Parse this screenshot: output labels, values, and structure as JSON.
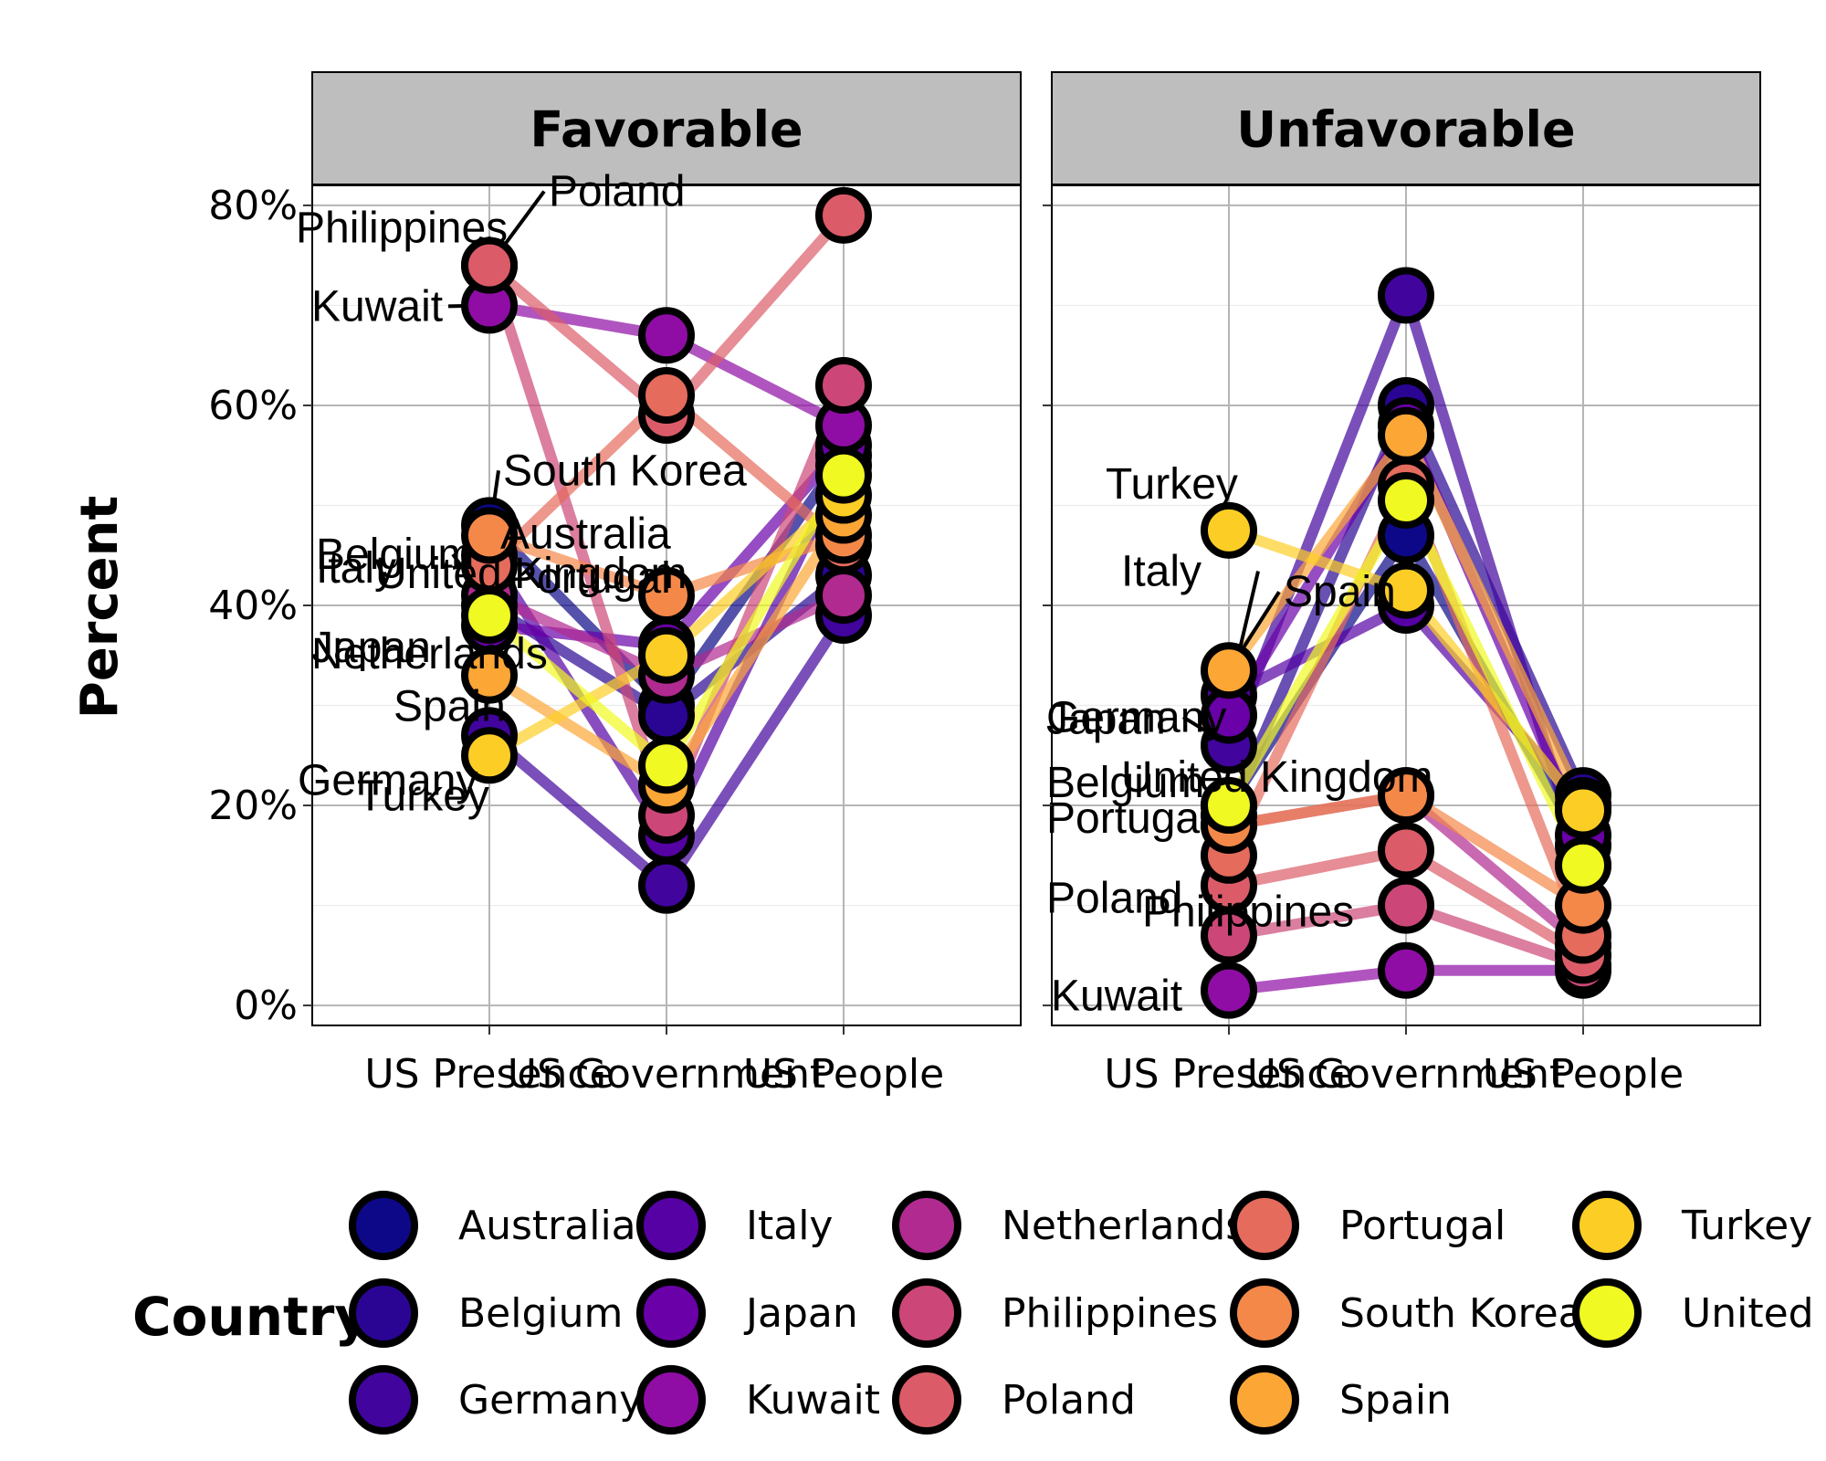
{
  "chart_data": {
    "type": "line",
    "ylabel": "Percent",
    "ylim": [
      -0.02,
      0.82
    ],
    "y_ticks": [
      "0%",
      "20%",
      "40%",
      "60%",
      "80%"
    ],
    "y_tick_values": [
      0,
      0.2,
      0.4,
      0.6,
      0.8
    ],
    "categories": [
      "US Presence",
      "US Government",
      "US People"
    ],
    "grid": true,
    "legend_placement": "bottom",
    "legend_title": "Country",
    "panels": [
      {
        "name": "Favorable",
        "series": [
          {
            "name": "Australia",
            "color": "#0d0887",
            "values": [
              0.48,
              0.3,
              0.55
            ]
          },
          {
            "name": "Belgium",
            "color": "#2a0593",
            "values": [
              0.4,
              0.29,
              0.43
            ]
          },
          {
            "name": "Germany",
            "color": "#41049d",
            "values": [
              0.27,
              0.12,
              0.39
            ]
          },
          {
            "name": "Italy",
            "color": "#5601a4",
            "values": [
              0.45,
              0.17,
              0.54
            ]
          },
          {
            "name": "Japan",
            "color": "#6a00a8",
            "values": [
              0.38,
              0.36,
              0.56
            ]
          },
          {
            "name": "Kuwait",
            "color": "#8f0da4",
            "values": [
              0.7,
              0.67,
              0.58
            ]
          },
          {
            "name": "Netherlands",
            "color": "#b12a90",
            "values": [
              0.41,
              0.33,
              0.41
            ]
          },
          {
            "name": "Philippines",
            "color": "#cc4778",
            "values": [
              0.74,
              0.19,
              0.62
            ]
          },
          {
            "name": "Poland",
            "color": "#db5c68",
            "values": [
              0.74,
              0.59,
              0.79
            ]
          },
          {
            "name": "Portugal",
            "color": "#e56b5d",
            "values": [
              0.44,
              0.61,
              0.46
            ]
          },
          {
            "name": "South Korea",
            "color": "#f48849",
            "values": [
              0.47,
              0.41,
              0.47
            ]
          },
          {
            "name": "Spain",
            "color": "#fca636",
            "values": [
              0.33,
              0.22,
              0.49
            ]
          },
          {
            "name": "Turkey",
            "color": "#fcce25",
            "values": [
              0.25,
              0.35,
              0.51
            ]
          },
          {
            "name": "United Kingdom",
            "color": "#f0f921",
            "values": [
              0.39,
              0.24,
              0.53
            ]
          }
        ],
        "labels": [
          {
            "text": "Philippines",
            "series": "Philippines"
          },
          {
            "text": "Poland",
            "series": "Poland"
          },
          {
            "text": "Kuwait",
            "series": "Kuwait"
          },
          {
            "text": "Australia",
            "series": "Australia"
          },
          {
            "text": "Netherlands",
            "series": "Netherlands"
          },
          {
            "text": "Portugal",
            "series": "Portugal"
          },
          {
            "text": "Belgium",
            "series": "Belgium"
          },
          {
            "text": "South Korea",
            "series": "South Korea"
          },
          {
            "text": "Italy",
            "series": "Italy"
          },
          {
            "text": "United Kingdom",
            "series": "United Kingdom"
          },
          {
            "text": "Japan",
            "series": "Japan"
          },
          {
            "text": "Spain",
            "series": "Spain"
          },
          {
            "text": "Germany",
            "series": "Germany"
          },
          {
            "text": "Turkey",
            "series": "Turkey"
          }
        ]
      },
      {
        "name": "Unfavorable",
        "series": [
          {
            "name": "Australia",
            "color": "#0d0887",
            "values": [
              0.2,
              0.47,
              0.16
            ]
          },
          {
            "name": "Belgium",
            "color": "#2a0593",
            "values": [
              0.19,
              0.6,
              0.21
            ]
          },
          {
            "name": "Germany",
            "color": "#41049d",
            "values": [
              0.26,
              0.71,
              0.14
            ]
          },
          {
            "name": "Italy",
            "color": "#5601a4",
            "values": [
              0.31,
              0.4,
              0.2
            ]
          },
          {
            "name": "Japan",
            "color": "#6a00a8",
            "values": [
              0.29,
              0.58,
              0.17
            ]
          },
          {
            "name": "Kuwait",
            "color": "#8f0da4",
            "values": [
              0.015,
              0.035,
              0.035
            ]
          },
          {
            "name": "Netherlands",
            "color": "#b12a90",
            "values": [
              0.18,
              0.21,
              0.06
            ]
          },
          {
            "name": "Philippines",
            "color": "#cc4778",
            "values": [
              0.07,
              0.1,
              0.04
            ]
          },
          {
            "name": "Poland",
            "color": "#db5c68",
            "values": [
              0.12,
              0.155,
              0.05
            ]
          },
          {
            "name": "Portugal",
            "color": "#e56b5d",
            "values": [
              0.15,
              0.52,
              0.07
            ]
          },
          {
            "name": "South Korea",
            "color": "#f48849",
            "values": [
              0.18,
              0.21,
              0.1
            ]
          },
          {
            "name": "Spain",
            "color": "#fca636",
            "values": [
              0.335,
              0.57,
              0.2
            ]
          },
          {
            "name": "Turkey",
            "color": "#fcce25",
            "values": [
              0.475,
              0.415,
              0.195
            ]
          },
          {
            "name": "United Kingdom",
            "color": "#f0f921",
            "values": [
              0.2,
              0.505,
              0.14
            ]
          }
        ],
        "labels": [
          {
            "text": "Turkey",
            "series": "Turkey"
          },
          {
            "text": "Italy",
            "series": "Italy"
          },
          {
            "text": "Spain",
            "series": "Spain"
          },
          {
            "text": "Germany",
            "series": "Germany"
          },
          {
            "text": "Japan",
            "series": "Japan"
          },
          {
            "text": "Belgium",
            "series": "Belgium"
          },
          {
            "text": "United Kingdom",
            "series": "United Kingdom"
          },
          {
            "text": "Portugal",
            "series": "Portugal"
          },
          {
            "text": "Poland",
            "series": "Poland"
          },
          {
            "text": "Philippines",
            "series": "Philippines"
          },
          {
            "text": "Kuwait",
            "series": "Kuwait"
          }
        ]
      }
    ],
    "legend": [
      {
        "name": "Australia",
        "color": "#0d0887"
      },
      {
        "name": "Belgium",
        "color": "#2a0593"
      },
      {
        "name": "Germany",
        "color": "#41049d"
      },
      {
        "name": "Italy",
        "color": "#5601a4"
      },
      {
        "name": "Japan",
        "color": "#6a00a8"
      },
      {
        "name": "Kuwait",
        "color": "#8f0da4"
      },
      {
        "name": "Netherlands",
        "color": "#b12a90"
      },
      {
        "name": "Philippines",
        "color": "#cc4778"
      },
      {
        "name": "Poland",
        "color": "#db5c68"
      },
      {
        "name": "Portugal",
        "color": "#e56b5d"
      },
      {
        "name": "South Korea",
        "color": "#f48849"
      },
      {
        "name": "Spain",
        "color": "#fca636"
      },
      {
        "name": "Turkey",
        "color": "#fcce25"
      },
      {
        "name": "United Kingdom",
        "color": "#f0f921"
      }
    ]
  }
}
